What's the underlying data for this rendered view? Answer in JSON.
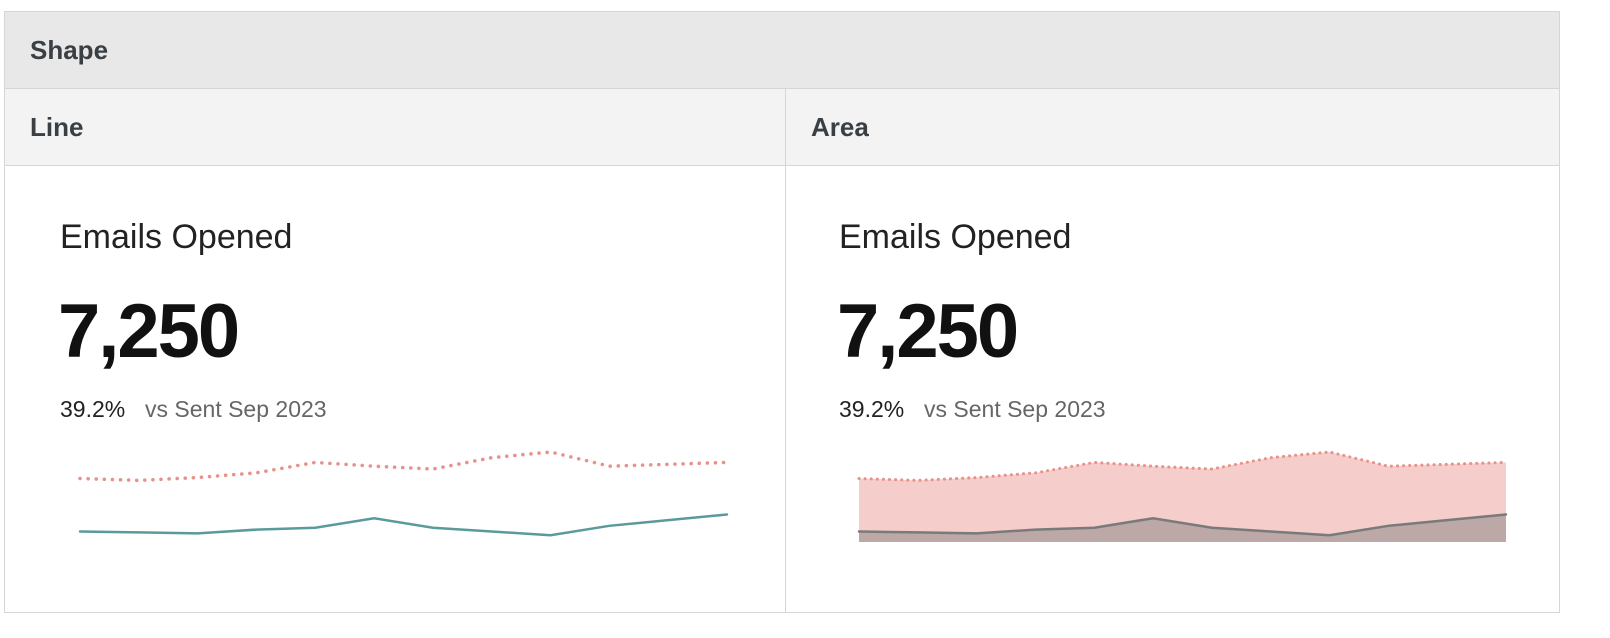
{
  "header": {
    "title": "Shape"
  },
  "columns": [
    {
      "label": "Line",
      "card": {
        "title": "Emails Opened",
        "value": "7,250",
        "change": "39.2%",
        "comparison": "vs Sent Sep 2023",
        "sparkline": {
          "type": "line",
          "series": [
            {
              "color": "#e8908a",
              "style": "dotted",
              "values": [
                65,
                63,
                66,
                71,
                82,
                78,
                75,
                87,
                93,
                78,
                80,
                82
              ]
            },
            {
              "color": "#5b9a9b",
              "style": "solid",
              "values": [
                9,
                8,
                7,
                11,
                13,
                23,
                13,
                9,
                5,
                15,
                21,
                27
              ]
            }
          ]
        }
      }
    },
    {
      "label": "Area",
      "card": {
        "title": "Emails Opened",
        "value": "7,250",
        "change": "39.2%",
        "comparison": "vs Sent Sep 2023",
        "sparkline": {
          "type": "area",
          "series": [
            {
              "color": "#e8908a",
              "style": "dotted",
              "values": [
                65,
                63,
                66,
                71,
                82,
                78,
                75,
                87,
                93,
                78,
                80,
                82
              ]
            },
            {
              "color": "#8a8a8a",
              "style": "solid",
              "values": [
                9,
                8,
                7,
                11,
                13,
                23,
                13,
                9,
                5,
                15,
                21,
                27
              ]
            }
          ]
        }
      }
    }
  ]
}
